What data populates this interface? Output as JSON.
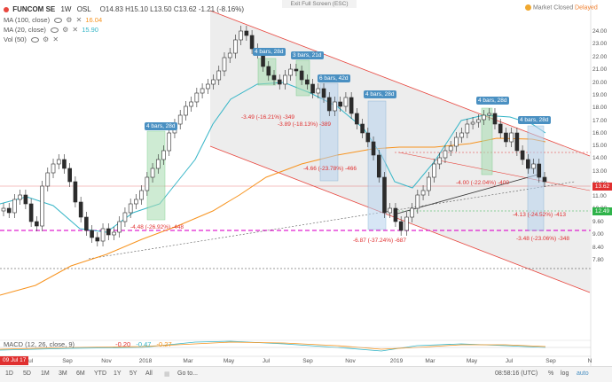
{
  "header": {
    "symbol": "FUNCOM SE",
    "interval": "1W",
    "exchange": "OSL",
    "ohlc": "O14.83  H15.10  L13.50  C13.62  -1.21 (-8.16%)",
    "exit_full_screen": "Exit Full Screen (ESC)",
    "market_status": "Market Closed",
    "market_status_note": "Delayed"
  },
  "indicators": [
    {
      "label": "MA (100, close)",
      "value": "16.04",
      "color": "#f7931e"
    },
    {
      "label": "MA (20, close)",
      "value": "15.90",
      "color": "#35b5c7"
    },
    {
      "label": "Vol (50)",
      "value": ""
    }
  ],
  "price_labels": {
    "last": "13.62",
    "last_color": "#e03030",
    "support": "12.49",
    "support_color": "#2fb34a"
  },
  "y_axis": [
    "24.00",
    "23.00",
    "22.00",
    "21.00",
    "20.00",
    "19.00",
    "18.00",
    "17.00",
    "16.00",
    "15.00",
    "14.00",
    "13.00",
    "12.00",
    "11.00",
    "10.00",
    "9.60",
    "9.00",
    "8.40",
    "7.80"
  ],
  "x_axis": [
    "Jul",
    "Sep",
    "Nov",
    "2018",
    "Mar",
    "May",
    "Jul",
    "Sep",
    "Nov",
    "2019",
    "Mar",
    "May",
    "Jul",
    "Sep",
    "N"
  ],
  "bars_boxes": [
    "4 bars, 28d",
    "4 bars, 28d",
    "3 bars, 21d",
    "6 bars, 42d",
    "4 bars, 28d",
    "4 bars, 28d",
    "4 bars, 28d"
  ],
  "change_labels": [
    "-4.48 (-26.92%) -448",
    "-3.49 (-16.21%) -349",
    "-3.89 (-18.13%) -389",
    "-4.66 (-23.78%) -466",
    "-6.87 (-37.24%) -687",
    "-4.00 (-22.04%) -400",
    "-4.13 (-24.52%) -413",
    "-3.48 (-23.06%) -348"
  ],
  "macd": {
    "label": "MACD (12, 26, close, 9)",
    "v1": "-0.20",
    "v2": "-0.47",
    "v3": "-0.27"
  },
  "bottom": {
    "date_badge": "09 Jul 17",
    "ranges": [
      "1D",
      "5D",
      "1M",
      "3M",
      "6M",
      "YTD",
      "1Y",
      "5Y",
      "All"
    ],
    "goto": "Go to...",
    "clock": "08:58:16 (UTC)",
    "pct": "%",
    "log": "log",
    "auto": "auto"
  },
  "colors": {
    "up": "#ffffff",
    "down": "#2b2b2b",
    "channel": "#e8473f",
    "ma100": "#f7931e",
    "ma20": "#35b5c7",
    "magenta": "#e020d0",
    "box_green": "#2fb34a",
    "box_blue": "#4a90c2"
  }
}
